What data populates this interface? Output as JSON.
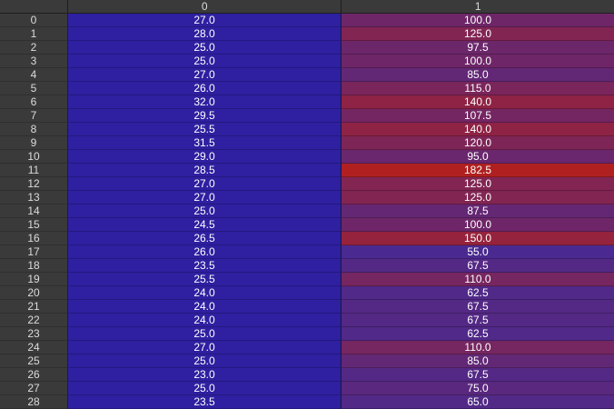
{
  "columns": [
    "0",
    "1"
  ],
  "rows": [
    {
      "index": "0",
      "c0": "27.0",
      "c1": "100.0"
    },
    {
      "index": "1",
      "c0": "28.0",
      "c1": "125.0"
    },
    {
      "index": "2",
      "c0": "25.0",
      "c1": "97.5"
    },
    {
      "index": "3",
      "c0": "25.0",
      "c1": "100.0"
    },
    {
      "index": "4",
      "c0": "27.0",
      "c1": "85.0"
    },
    {
      "index": "5",
      "c0": "26.0",
      "c1": "115.0"
    },
    {
      "index": "6",
      "c0": "32.0",
      "c1": "140.0"
    },
    {
      "index": "7",
      "c0": "29.5",
      "c1": "107.5"
    },
    {
      "index": "8",
      "c0": "25.5",
      "c1": "140.0"
    },
    {
      "index": "9",
      "c0": "31.5",
      "c1": "120.0"
    },
    {
      "index": "10",
      "c0": "29.0",
      "c1": "95.0"
    },
    {
      "index": "11",
      "c0": "28.5",
      "c1": "182.5"
    },
    {
      "index": "12",
      "c0": "27.0",
      "c1": "125.0"
    },
    {
      "index": "13",
      "c0": "27.0",
      "c1": "125.0"
    },
    {
      "index": "14",
      "c0": "25.0",
      "c1": "87.5"
    },
    {
      "index": "15",
      "c0": "24.5",
      "c1": "100.0"
    },
    {
      "index": "16",
      "c0": "26.5",
      "c1": "150.0"
    },
    {
      "index": "17",
      "c0": "26.0",
      "c1": "55.0"
    },
    {
      "index": "18",
      "c0": "23.5",
      "c1": "67.5"
    },
    {
      "index": "19",
      "c0": "25.5",
      "c1": "110.0"
    },
    {
      "index": "20",
      "c0": "24.0",
      "c1": "62.5"
    },
    {
      "index": "21",
      "c0": "24.0",
      "c1": "67.5"
    },
    {
      "index": "22",
      "c0": "24.0",
      "c1": "67.5"
    },
    {
      "index": "23",
      "c0": "25.0",
      "c1": "62.5"
    },
    {
      "index": "24",
      "c0": "27.0",
      "c1": "110.0"
    },
    {
      "index": "25",
      "c0": "25.0",
      "c1": "85.0"
    },
    {
      "index": "26",
      "c0": "23.0",
      "c1": "67.5"
    },
    {
      "index": "27",
      "c0": "25.0",
      "c1": "75.0"
    },
    {
      "index": "28",
      "c0": "23.5",
      "c1": "65.0"
    }
  ],
  "colors": {
    "col0_bg": "#2e20a0",
    "heat_low": "#4a2a90",
    "heat_high": "#b02020"
  }
}
